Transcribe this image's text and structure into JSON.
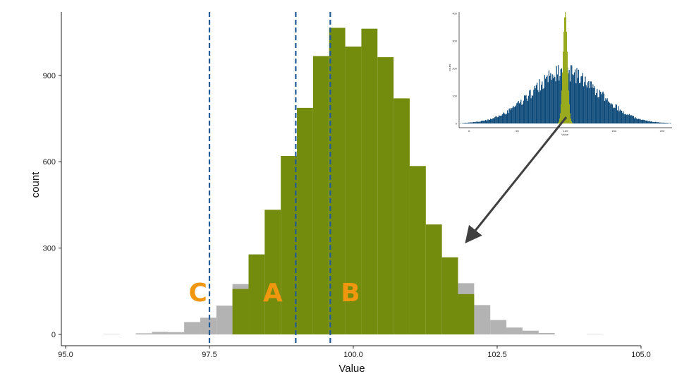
{
  "chart_data": {
    "type": "bar",
    "xlabel": "Value",
    "ylabel": "count",
    "xlim": [
      95.0,
      105.0
    ],
    "ylim": [
      0,
      1080
    ],
    "x_ticks": [
      "95.0",
      "97.5",
      "100.0",
      "102.5",
      "105.0"
    ],
    "y_ticks": [
      "0",
      "300",
      "600",
      "900"
    ],
    "bin_width": 0.28,
    "grid": false,
    "legend": "none",
    "series": [
      {
        "color": "#b3b3b3",
        "bins": [
          {
            "x0": 95.66,
            "count": 1
          },
          {
            "x0": 95.94,
            "count": 0
          },
          {
            "x0": 96.22,
            "count": 4
          },
          {
            "x0": 96.5,
            "count": 9
          },
          {
            "x0": 96.78,
            "count": 8
          },
          {
            "x0": 97.06,
            "count": 43
          },
          {
            "x0": 97.34,
            "count": 58
          },
          {
            "x0": 97.62,
            "count": 100
          },
          {
            "x0": 97.9,
            "count": 175
          },
          {
            "x0": 101.82,
            "count": 178
          },
          {
            "x0": 102.1,
            "count": 102
          },
          {
            "x0": 102.38,
            "count": 50
          },
          {
            "x0": 102.66,
            "count": 24
          },
          {
            "x0": 102.94,
            "count": 13
          },
          {
            "x0": 103.22,
            "count": 5
          },
          {
            "x0": 103.5,
            "count": 0
          },
          {
            "x0": 103.78,
            "count": 0
          },
          {
            "x0": 104.06,
            "count": 1
          }
        ]
      },
      {
        "color": "#748c0e",
        "bins": [
          {
            "x0": 97.9,
            "count": 158
          },
          {
            "x0": 98.18,
            "count": 278
          },
          {
            "x0": 98.46,
            "count": 433
          },
          {
            "x0": 98.74,
            "count": 620
          },
          {
            "x0": 99.02,
            "count": 787
          },
          {
            "x0": 99.3,
            "count": 967
          },
          {
            "x0": 99.58,
            "count": 1065
          },
          {
            "x0": 99.86,
            "count": 1000
          },
          {
            "x0": 100.14,
            "count": 1062
          },
          {
            "x0": 100.42,
            "count": 963
          },
          {
            "x0": 100.7,
            "count": 820
          },
          {
            "x0": 100.98,
            "count": 585
          },
          {
            "x0": 101.26,
            "count": 382
          },
          {
            "x0": 101.54,
            "count": 268
          },
          {
            "x0": 101.82,
            "count": 140
          }
        ]
      }
    ],
    "vlines": {
      "color": "#1f5a99",
      "style": "dashed",
      "x": [
        97.5,
        99.0,
        99.6
      ]
    },
    "annotations": [
      {
        "text": "C",
        "x": 97.3,
        "y": 150,
        "color": "#f0960f"
      },
      {
        "text": "A",
        "x": 98.6,
        "y": 150,
        "color": "#f0960f"
      },
      {
        "text": "B",
        "x": 99.95,
        "y": 150,
        "color": "#f0960f"
      }
    ],
    "inset": {
      "type": "histogram",
      "xlabel": "Value",
      "ylabel": "count",
      "tick_labels_x": [
        "0",
        "50",
        "100",
        "150",
        "200"
      ],
      "tick_labels_y": [
        "0",
        "100",
        "200",
        "300",
        "400"
      ],
      "colors": {
        "wide": "#0e4a7a",
        "narrow": "#9aaa1e"
      },
      "arrow_color": "#404040"
    }
  }
}
